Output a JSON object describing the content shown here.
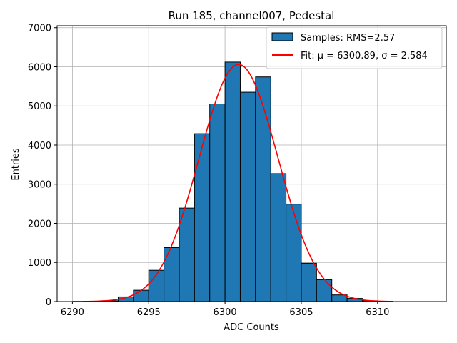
{
  "chart_data": {
    "type": "bar",
    "title": "Run 185, channel007, Pedestal",
    "xlabel": "ADC Counts",
    "ylabel": "Entries",
    "xlim": [
      6289,
      6314.5
    ],
    "ylim": [
      0,
      7050
    ],
    "xticks": [
      6290,
      6295,
      6300,
      6305,
      6310
    ],
    "yticks": [
      0,
      1000,
      2000,
      3000,
      4000,
      5000,
      6000,
      7000
    ],
    "grid": true,
    "legend_position": "top-right",
    "histogram": {
      "name": "Samples: RMS=2.57",
      "color": "#1f77b4",
      "bin_width": 1,
      "bins": [
        {
          "x": 6292,
          "count": 20
        },
        {
          "x": 6293,
          "count": 120
        },
        {
          "x": 6294,
          "count": 290
        },
        {
          "x": 6295,
          "count": 800
        },
        {
          "x": 6296,
          "count": 1380
        },
        {
          "x": 6297,
          "count": 2390
        },
        {
          "x": 6298,
          "count": 4290
        },
        {
          "x": 6299,
          "count": 5050
        },
        {
          "x": 6300,
          "count": 6120
        },
        {
          "x": 6301,
          "count": 5350
        },
        {
          "x": 6302,
          "count": 5740
        },
        {
          "x": 6303,
          "count": 3270
        },
        {
          "x": 6304,
          "count": 2490
        },
        {
          "x": 6305,
          "count": 980
        },
        {
          "x": 6306,
          "count": 560
        },
        {
          "x": 6307,
          "count": 170
        },
        {
          "x": 6308,
          "count": 80
        },
        {
          "x": 6309,
          "count": 20
        }
      ]
    },
    "fit": {
      "name": "Fit: μ = 6300.89, σ = 2.584",
      "color": "#ff0000",
      "mu": 6300.89,
      "sigma": 2.584,
      "amplitude": 6060,
      "x_range": [
        6290,
        6311
      ]
    }
  }
}
